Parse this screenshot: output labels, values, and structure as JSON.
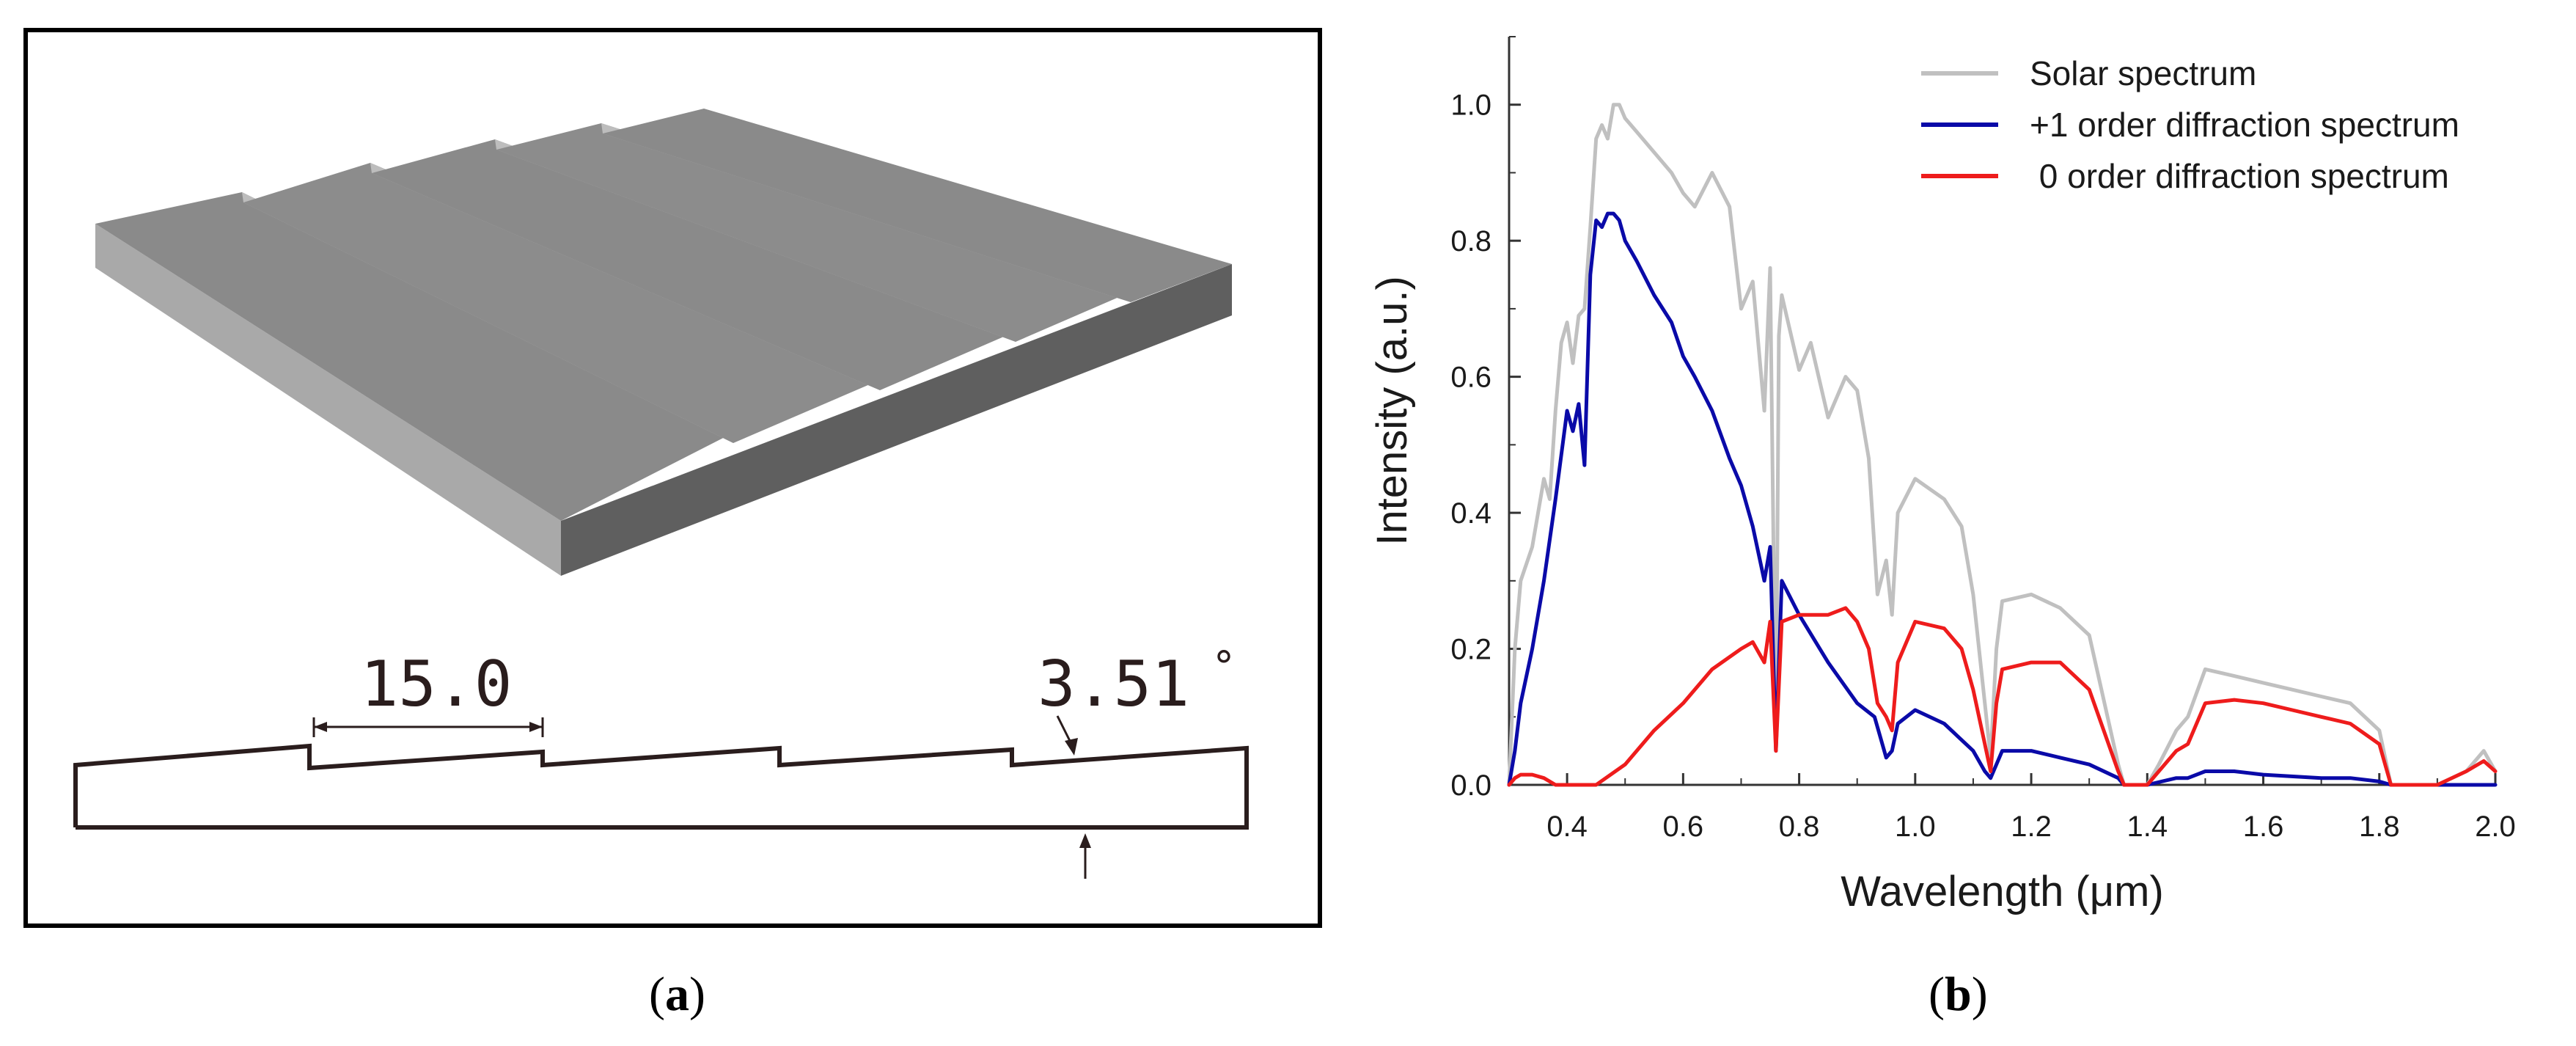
{
  "panel_a": {
    "dimension_pitch": "15.0",
    "dimension_angle": "3.51",
    "degree_mark": "°",
    "caption_open": "(",
    "caption_letter": "a",
    "caption_close": ")",
    "colors": {
      "top": "#8c8c8c",
      "front": "#5f5f5f",
      "left": "#a9a9a9",
      "riser": "#bdbdbd",
      "outline": "#2a1d1d"
    }
  },
  "panel_b": {
    "caption_open": "(",
    "caption_letter": "b",
    "caption_close": ")"
  },
  "chart_data": {
    "type": "line",
    "title": "",
    "xlabel": "Wavelength (μm)",
    "ylabel": "Intensity (a.u.)",
    "xlim": [
      0.3,
      2.0
    ],
    "ylim": [
      0.0,
      1.1
    ],
    "xticks": [
      "0.4",
      "0.6",
      "0.8",
      "1.0",
      "1.2",
      "1.4",
      "1.6",
      "1.8",
      "2.0"
    ],
    "yticks": [
      "0.0",
      "0.2",
      "0.4",
      "0.6",
      "0.8",
      "1.0"
    ],
    "legend_position": "top-right",
    "series": [
      {
        "name": "Solar spectrum",
        "color": "#c0c0c0",
        "x": [
          0.3,
          0.31,
          0.32,
          0.34,
          0.36,
          0.37,
          0.38,
          0.39,
          0.4,
          0.41,
          0.42,
          0.43,
          0.44,
          0.45,
          0.46,
          0.47,
          0.48,
          0.49,
          0.5,
          0.52,
          0.55,
          0.58,
          0.6,
          0.62,
          0.65,
          0.68,
          0.7,
          0.72,
          0.74,
          0.75,
          0.76,
          0.765,
          0.77,
          0.8,
          0.82,
          0.85,
          0.88,
          0.9,
          0.92,
          0.935,
          0.95,
          0.96,
          0.97,
          1.0,
          1.05,
          1.08,
          1.1,
          1.12,
          1.13,
          1.14,
          1.15,
          1.2,
          1.25,
          1.3,
          1.35,
          1.36,
          1.4,
          1.42,
          1.45,
          1.47,
          1.5,
          1.55,
          1.6,
          1.65,
          1.7,
          1.75,
          1.8,
          1.82,
          1.9,
          1.95,
          1.98,
          2.0
        ],
        "y": [
          0.0,
          0.2,
          0.3,
          0.35,
          0.45,
          0.42,
          0.55,
          0.65,
          0.68,
          0.62,
          0.69,
          0.7,
          0.82,
          0.95,
          0.97,
          0.95,
          1.0,
          1.0,
          0.98,
          0.96,
          0.93,
          0.9,
          0.87,
          0.85,
          0.9,
          0.85,
          0.7,
          0.74,
          0.55,
          0.76,
          0.05,
          0.66,
          0.72,
          0.61,
          0.65,
          0.54,
          0.6,
          0.58,
          0.48,
          0.28,
          0.33,
          0.25,
          0.4,
          0.45,
          0.42,
          0.38,
          0.28,
          0.12,
          0.04,
          0.2,
          0.27,
          0.28,
          0.26,
          0.22,
          0.03,
          0.0,
          0.0,
          0.03,
          0.08,
          0.1,
          0.17,
          0.16,
          0.15,
          0.14,
          0.13,
          0.12,
          0.08,
          0.0,
          0.0,
          0.02,
          0.05,
          0.02
        ]
      },
      {
        "name": "+1 order diffraction spectrum",
        "color": "#0a0aa8",
        "x": [
          0.3,
          0.31,
          0.32,
          0.34,
          0.36,
          0.38,
          0.4,
          0.41,
          0.42,
          0.43,
          0.44,
          0.45,
          0.46,
          0.47,
          0.48,
          0.49,
          0.5,
          0.52,
          0.55,
          0.58,
          0.6,
          0.62,
          0.65,
          0.68,
          0.7,
          0.72,
          0.74,
          0.75,
          0.76,
          0.77,
          0.8,
          0.85,
          0.9,
          0.93,
          0.95,
          0.96,
          0.97,
          1.0,
          1.05,
          1.1,
          1.12,
          1.13,
          1.14,
          1.15,
          1.2,
          1.25,
          1.3,
          1.35,
          1.36,
          1.4,
          1.45,
          1.47,
          1.5,
          1.55,
          1.6,
          1.7,
          1.75,
          1.8,
          1.82,
          1.9,
          2.0
        ],
        "y": [
          0.0,
          0.05,
          0.12,
          0.2,
          0.3,
          0.42,
          0.55,
          0.52,
          0.56,
          0.47,
          0.75,
          0.83,
          0.82,
          0.84,
          0.84,
          0.83,
          0.8,
          0.77,
          0.72,
          0.68,
          0.63,
          0.6,
          0.55,
          0.48,
          0.44,
          0.38,
          0.3,
          0.35,
          0.05,
          0.3,
          0.25,
          0.18,
          0.12,
          0.1,
          0.04,
          0.05,
          0.09,
          0.11,
          0.09,
          0.05,
          0.02,
          0.01,
          0.03,
          0.05,
          0.05,
          0.04,
          0.03,
          0.01,
          0.0,
          0.0,
          0.01,
          0.01,
          0.02,
          0.02,
          0.015,
          0.01,
          0.01,
          0.005,
          0.0,
          0.0,
          0.0
        ]
      },
      {
        "name": " 0 order diffraction spectrum",
        "color": "#ee1c1c",
        "x": [
          0.3,
          0.31,
          0.32,
          0.34,
          0.36,
          0.38,
          0.4,
          0.45,
          0.5,
          0.55,
          0.6,
          0.65,
          0.7,
          0.72,
          0.74,
          0.75,
          0.76,
          0.77,
          0.8,
          0.85,
          0.88,
          0.9,
          0.92,
          0.935,
          0.95,
          0.96,
          0.97,
          1.0,
          1.05,
          1.08,
          1.1,
          1.12,
          1.13,
          1.14,
          1.15,
          1.2,
          1.25,
          1.3,
          1.35,
          1.36,
          1.4,
          1.42,
          1.45,
          1.47,
          1.5,
          1.55,
          1.6,
          1.65,
          1.7,
          1.75,
          1.8,
          1.82,
          1.9,
          1.95,
          1.98,
          2.0
        ],
        "y": [
          0.0,
          0.01,
          0.015,
          0.015,
          0.01,
          0.0,
          0.0,
          0.0,
          0.03,
          0.08,
          0.12,
          0.17,
          0.2,
          0.21,
          0.18,
          0.24,
          0.05,
          0.24,
          0.25,
          0.25,
          0.26,
          0.24,
          0.2,
          0.12,
          0.1,
          0.08,
          0.18,
          0.24,
          0.23,
          0.2,
          0.14,
          0.06,
          0.02,
          0.12,
          0.17,
          0.18,
          0.18,
          0.14,
          0.02,
          0.0,
          0.0,
          0.02,
          0.05,
          0.06,
          0.12,
          0.125,
          0.12,
          0.11,
          0.1,
          0.09,
          0.06,
          0.0,
          0.0,
          0.02,
          0.035,
          0.02
        ]
      }
    ]
  }
}
